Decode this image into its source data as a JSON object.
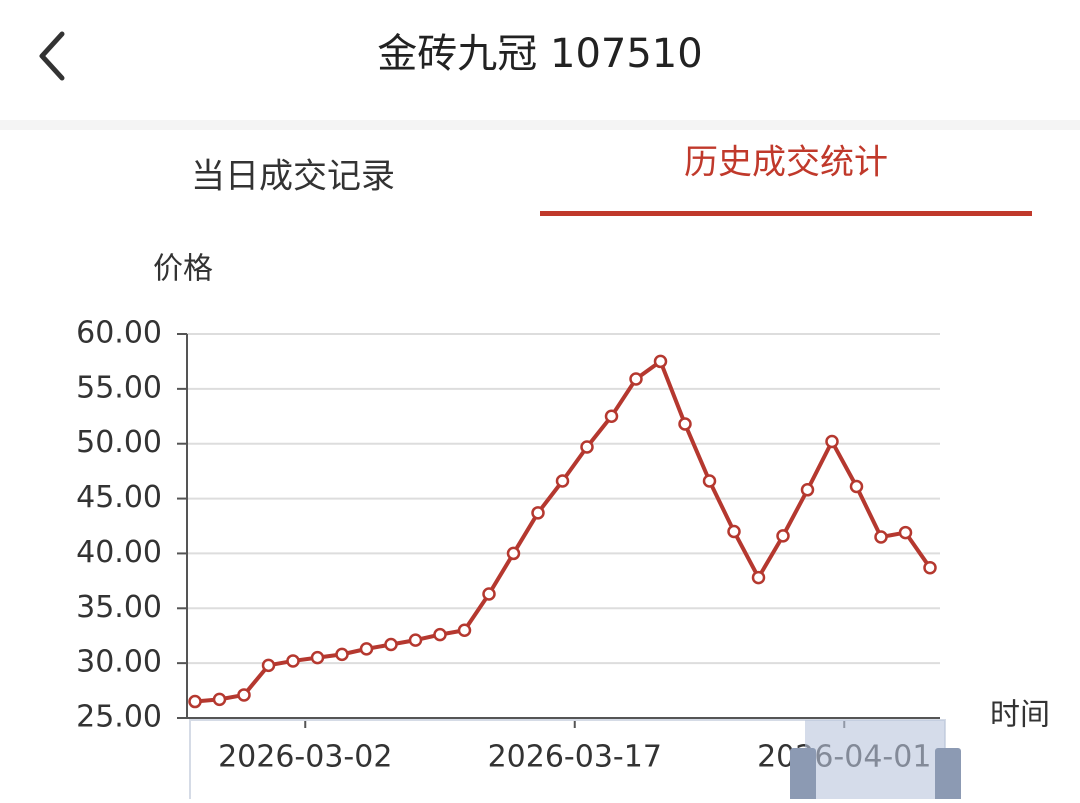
{
  "header": {
    "title": "金砖九冠 107510"
  },
  "tabs": [
    "当日成交记录",
    "历史成交统计"
  ],
  "chart_data": {
    "type": "line",
    "y_label": "价格",
    "x_label": "时间",
    "categories": [
      null,
      null,
      null,
      null,
      null,
      null,
      null,
      null,
      null,
      null,
      null,
      null,
      null,
      null,
      null,
      null,
      null,
      null,
      null,
      null,
      null,
      null,
      null,
      null,
      null,
      null,
      null,
      null,
      null,
      null,
      null
    ],
    "series": [
      {
        "name": "价格",
        "color": "#b5382f",
        "values": [
          26.5,
          26.7,
          27.1,
          29.8,
          30.2,
          30.5,
          30.8,
          31.3,
          31.7,
          32.1,
          32.6,
          33.0,
          36.3,
          40.0,
          43.7,
          46.6,
          49.7,
          52.5,
          55.9,
          57.5,
          51.8,
          46.6,
          42.0,
          37.8,
          41.6,
          45.8,
          50.2,
          46.1,
          41.5,
          41.9,
          38.7
        ]
      }
    ],
    "ylim": [
      25,
      60
    ],
    "yticks": [
      {
        "value": 25,
        "label": "25.00"
      },
      {
        "value": 30,
        "label": "30.00"
      },
      {
        "value": 35,
        "label": "35.00"
      },
      {
        "value": 40,
        "label": "40.00"
      },
      {
        "value": 45,
        "label": "45.00"
      },
      {
        "value": 50,
        "label": "50.00"
      },
      {
        "value": 55,
        "label": "55.00"
      },
      {
        "value": 60,
        "label": "60.00"
      }
    ],
    "xticks": [
      {
        "value": 4.5,
        "label": "2026-03-02"
      },
      {
        "value": 15.5,
        "label": "2026-03-17"
      },
      {
        "value": 26.5,
        "label": "2026-04-01"
      }
    ],
    "grid": true
  }
}
